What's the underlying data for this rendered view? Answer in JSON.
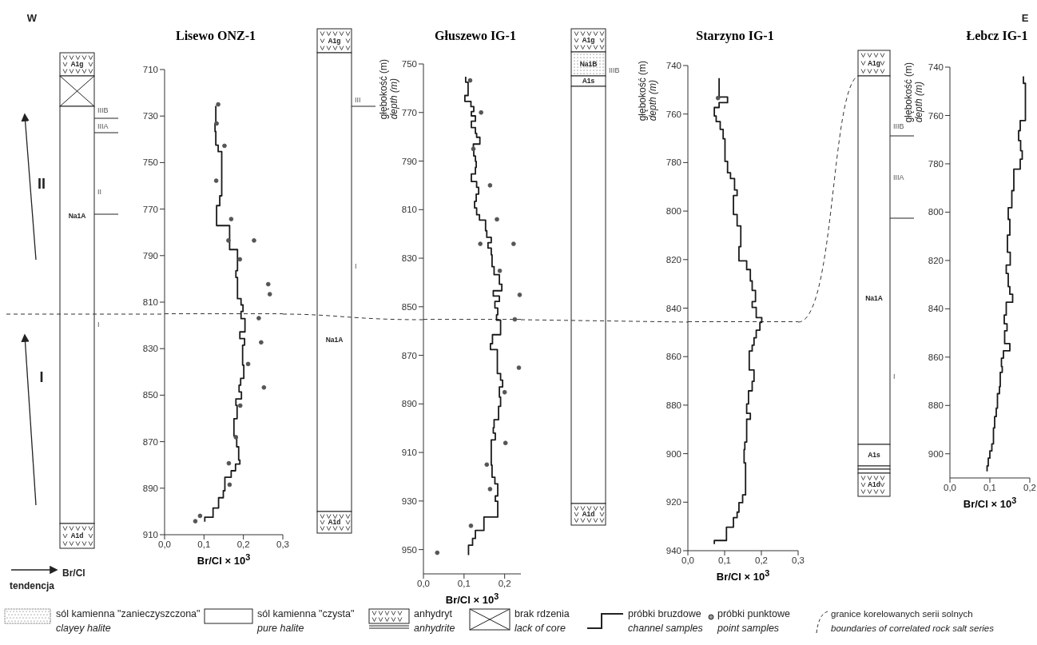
{
  "chart_data": [
    {
      "type": "step",
      "title": "Lisewo ONZ-1",
      "xlabel": "Br/Cl × 10$^{3}$",
      "orientation": "horizontal",
      "xlim": [
        0,
        0.3
      ],
      "xticks": [
        {
          "value": 0,
          "label": "0,0"
        },
        {
          "value": 0.1,
          "label": "0,1"
        },
        {
          "value": 0.2,
          "label": "0,2"
        },
        {
          "value": 0.3,
          "label": "0,3"
        }
      ],
      "ylim": [
        910,
        710
      ],
      "yticks": [
        710,
        730,
        750,
        770,
        790,
        810,
        830,
        850,
        870,
        890,
        910
      ],
      "x": [
        725.6,
        733.2,
        736.6,
        742.5,
        745.3,
        764.3,
        768.5,
        777.1,
        787.4,
        796.5,
        799.4,
        808.5,
        811.2,
        814.0,
        817.1,
        822.8,
        825.7,
        828.5,
        837.1,
        842.8,
        845.7,
        848.6,
        851.6,
        854.4,
        860.1,
        867.6,
        872.2,
        877.9,
        879.6,
        882.5,
        885.3,
        891.1,
        894.1,
        898.5,
        902.5,
        904.4
      ],
      "series": [
        {
          "color": "#1a1a1a",
          "values": [
            0.13,
            0.128,
            0.13,
            0.136,
            0.145,
            0.14,
            0.132,
            0.165,
            0.185,
            0.181,
            0.185,
            0.194,
            0.199,
            0.194,
            0.204,
            0.191,
            0.203,
            0.198,
            0.201,
            0.193,
            0.189,
            0.195,
            0.181,
            0.184,
            0.176,
            0.183,
            0.188,
            0.191,
            0.18,
            0.169,
            0.153,
            0.149,
            0.137,
            0.123,
            0.102,
            0.102
          ]
        },
        {
          "type": "scatter",
          "marker": "circle",
          "color": "#555555",
          "x": [
            725,
            733.2,
            742.8,
            757.8,
            774.3,
            783.5,
            783.5,
            791.6,
            802.3,
            806.6,
            816.9,
            827.3,
            836.6,
            846.7,
            854.5,
            868.1,
            879.3,
            888.5,
            901.9,
            904.2
          ],
          "values": [
            0.136,
            0.132,
            0.152,
            0.131,
            0.169,
            0.162,
            0.227,
            0.191,
            0.263,
            0.267,
            0.239,
            0.245,
            0.212,
            0.252,
            0.192,
            0.181,
            0.163,
            0.165,
            0.09,
            0.078
          ]
        }
      ],
      "ref_lines": [
        {
          "axis": "y",
          "value": 815,
          "line_style": "dashed",
          "color": "#333333"
        }
      ],
      "annotations": [
        "A1g",
        "Na1A",
        "A1d",
        "IIIB",
        "IIIA",
        "II",
        "I"
      ]
    },
    {
      "type": "step",
      "title": "Głuszewo IG-1",
      "xlabel": "Br/Cl × 10$^{3}$",
      "ylabel": "głębokość (m)\ndepth (m)",
      "orientation": "horizontal",
      "xlim": [
        0,
        0.24
      ],
      "xticks": [
        {
          "value": 0,
          "label": "0,0"
        },
        {
          "value": 0.1,
          "label": "0,1"
        },
        {
          "value": 0.2,
          "label": "0,2"
        }
      ],
      "ylim": [
        960,
        750
      ],
      "yticks": [
        750,
        770,
        790,
        810,
        830,
        850,
        870,
        890,
        910,
        930,
        950
      ],
      "x": [
        755.3,
        757.5,
        763.0,
        765.4,
        767.6,
        769.6,
        771.4,
        773.6,
        776.2,
        778.6,
        780.2,
        783.0,
        785.2,
        787.9,
        790.1,
        792.6,
        795.3,
        798.4,
        800.8,
        803.6,
        806.6,
        809.3,
        812.1,
        814.3,
        818.7,
        821.4,
        823.6,
        825.8,
        828.6,
        833.5,
        836.8,
        840.7,
        843.4,
        845.6,
        847.8,
        850.5,
        853.3,
        855.5,
        861.5,
        865.2,
        867.6,
        877.5,
        880.2,
        883.0,
        887.2,
        891.0,
        896.5,
        899.8,
        902.0,
        904.8,
        915.2,
        920.2,
        922.9,
        927.9,
        930.1,
        936.6,
        942.1,
        945.4,
        948.2,
        952.3
      ],
      "series": [
        {
          "color": "#1a1a1a",
          "values": [
            0.104,
            0.11,
            0.102,
            0.117,
            0.124,
            0.118,
            0.128,
            0.118,
            0.128,
            0.131,
            0.139,
            0.123,
            0.124,
            0.128,
            0.13,
            0.128,
            0.118,
            0.131,
            0.136,
            0.13,
            0.126,
            0.131,
            0.138,
            0.153,
            0.156,
            0.167,
            0.159,
            0.167,
            0.169,
            0.174,
            0.187,
            0.193,
            0.172,
            0.187,
            0.176,
            0.183,
            0.18,
            0.19,
            0.17,
            0.165,
            0.182,
            0.19,
            0.195,
            0.187,
            0.19,
            0.185,
            0.174,
            0.172,
            0.177,
            0.167,
            0.169,
            0.176,
            0.183,
            0.177,
            0.183,
            0.149,
            0.128,
            0.121,
            0.111,
            0.111
          ]
        },
        {
          "type": "scatter",
          "marker": "circle",
          "color": "#555555",
          "x": [
            756.8,
            770.0,
            785.0,
            800.0,
            814.0,
            824.1,
            824.1,
            835.2,
            845.1,
            855.2,
            875.1,
            885.2,
            906.1,
            915.0,
            925.1,
            940.2,
            951.3
          ],
          "values": [
            0.115,
            0.142,
            0.123,
            0.164,
            0.181,
            0.14,
            0.222,
            0.188,
            0.237,
            0.225,
            0.235,
            0.2,
            0.202,
            0.156,
            0.164,
            0.117,
            0.034
          ]
        }
      ],
      "ref_lines": [
        {
          "axis": "y",
          "value": 855.2,
          "line_style": "dashed",
          "color": "#333333"
        }
      ],
      "annotations": [
        "A1g",
        "Na1A",
        "A1d",
        "III",
        "I"
      ]
    },
    {
      "type": "step",
      "title": "Starzyno IG-1",
      "xlabel": "Br/Cl × 10$^{3}$",
      "ylabel": "głębokość (m)\ndepth (m)",
      "orientation": "horizontal",
      "xlim": [
        0,
        0.3
      ],
      "xticks": [
        {
          "value": 0,
          "label": "0,0"
        },
        {
          "value": 0.1,
          "label": "0,1"
        },
        {
          "value": 0.2,
          "label": "0,2"
        },
        {
          "value": 0.3,
          "label": "0,3"
        }
      ],
      "ylim": [
        940,
        740
      ],
      "yticks": [
        740,
        760,
        780,
        800,
        820,
        840,
        860,
        880,
        900,
        920,
        940
      ],
      "x": [
        745.2,
        753.0,
        755.3,
        756.0,
        757.3,
        760.8,
        763.1,
        766.3,
        770.2,
        779.5,
        784.2,
        786.6,
        791.3,
        793.6,
        801.4,
        806.1,
        814.7,
        820.5,
        824.1,
        828.8,
        832.7,
        837.3,
        839.7,
        843.9,
        845.9,
        849.1,
        852.2,
        855.3,
        857.7,
        865.5,
        870.2,
        874.1,
        879.5,
        883.4,
        885.8,
        895.2,
        898.3,
        903.8,
        917.0,
        920.2,
        924.1,
        926.4,
        930.3,
        935.8,
        937.3
      ],
      "series": [
        {
          "color": "#1a1a1a",
          "values": [
            0.085,
            0.108,
            0.085,
            null,
            0.072,
            0.077,
            0.088,
            0.096,
            0.101,
            0.108,
            0.116,
            0.127,
            0.134,
            0.124,
            0.134,
            0.144,
            0.139,
            0.16,
            0.17,
            0.175,
            0.184,
            0.175,
            0.186,
            0.201,
            0.196,
            0.186,
            0.18,
            0.175,
            0.167,
            0.18,
            0.175,
            0.165,
            0.16,
            0.17,
            0.16,
            0.155,
            0.153,
            0.157,
            0.149,
            0.139,
            0.134,
            0.124,
            0.105,
            0.072,
            0.072
          ]
        },
        {
          "type": "scatter",
          "marker": "circle",
          "color": "#555555",
          "x": [
            753.4
          ],
          "values": [
            0.082
          ]
        }
      ],
      "ref_lines": [
        {
          "axis": "y",
          "value": 845.6,
          "line_style": "dashed",
          "color": "#333333"
        }
      ],
      "annotations": [
        "A1g",
        "Na1B",
        "A1s",
        "A1d",
        "IIIB"
      ]
    },
    {
      "type": "step",
      "title": "Łebcz IG-1",
      "xlabel": "Br/Cl × 10$^{3}$",
      "ylabel": "głębokość (m)\ndepth (m)",
      "orientation": "horizontal",
      "xlim": [
        0,
        0.2
      ],
      "xticks": [
        {
          "value": 0,
          "label": "0,0"
        },
        {
          "value": 0.1,
          "label": "0,1"
        },
        {
          "value": 0.2,
          "label": "0,2"
        }
      ],
      "ylim": [
        910,
        740
      ],
      "yticks": [
        740,
        760,
        780,
        800,
        820,
        840,
        860,
        880,
        900
      ],
      "x": [
        743.8,
        746.7,
        762.1,
        766.3,
        770.4,
        774.6,
        778.1,
        782.2,
        791.1,
        798.2,
        803.0,
        809.5,
        816.6,
        821.9,
        825.4,
        830.8,
        834.0,
        837.3,
        842.6,
        846.2,
        849.1,
        854.4,
        857.4,
        860.4,
        863.9,
        866.3,
        872.2,
        875.1,
        881.1,
        884.6,
        889.3,
        895.9,
        898.8,
        901.8,
        905.0,
        907.3
      ],
      "series": [
        {
          "color": "#1a1a1a",
          "values": [
            0.184,
            0.189,
            0.176,
            0.172,
            0.177,
            0.181,
            0.176,
            0.16,
            0.155,
            0.146,
            0.15,
            0.144,
            0.151,
            0.141,
            0.146,
            0.15,
            0.157,
            0.141,
            0.136,
            0.143,
            0.137,
            0.15,
            0.134,
            0.129,
            0.131,
            0.126,
            0.124,
            0.119,
            0.116,
            0.112,
            0.109,
            0.105,
            0.1,
            0.096,
            0.093,
            0.093
          ]
        }
      ],
      "annotations": [
        "A1g",
        "Na1A",
        "A1s",
        "A1d",
        "IIIB",
        "IIIA",
        "I"
      ]
    },
    {
      "type": "other",
      "annotations": [
        "W",
        "E",
        "II",
        "I",
        "tendencja",
        "Br/Cl",
        "sól kamienna \"zanieczyszczona\"",
        "clayey halite",
        "sól kamienna \"czysta\"",
        "pure halite",
        "anhydryt",
        "anhydrite",
        "brak rdzenia",
        "lack of core",
        "próbki bruzdowe",
        "channel samples",
        "próbki punktowe",
        "point samples",
        "granice korelowanych serii solnych",
        "boundaries of correlated rock salt series"
      ]
    }
  ]
}
